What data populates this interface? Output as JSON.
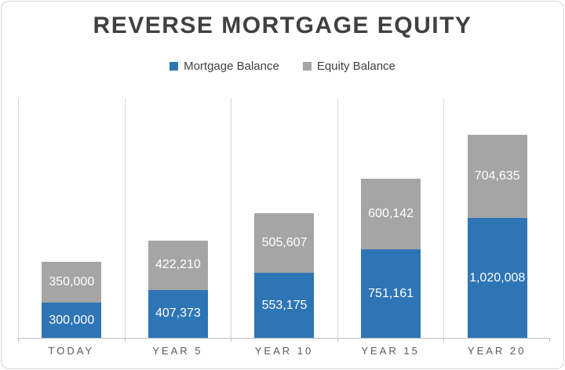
{
  "chart_data": {
    "type": "bar",
    "stacked": true,
    "title": "REVERSE MORTGAGE EQUITY",
    "categories": [
      "TODAY",
      "YEAR 5",
      "YEAR 10",
      "YEAR 15",
      "YEAR 20"
    ],
    "series": [
      {
        "name": "Mortgage Balance",
        "color": "#2E75B6",
        "values": [
          300000,
          407373,
          553175,
          751161,
          1020008
        ],
        "labels": [
          "300,000",
          "407,373",
          "553,175",
          "751,161",
          "1,020,008"
        ]
      },
      {
        "name": "Equity Balance",
        "color": "#A5A5A5",
        "values": [
          350000,
          422210,
          505607,
          600142,
          704635
        ],
        "labels": [
          "350,000",
          "422,210",
          "505,607",
          "600,142",
          "704,635"
        ]
      }
    ],
    "totals": [
      650000,
      829583,
      1058782,
      1351303,
      1724643
    ],
    "xlabel": "",
    "ylabel": "",
    "ylim": [
      0,
      2040000
    ],
    "grid": "vertical-category-boundaries",
    "legend_position": "top",
    "value_label_color": "#FFFFFF",
    "axis_label_color": "#595959",
    "gridline_color": "#D9D9D9",
    "axis_line_color": "#BFBFBF"
  }
}
